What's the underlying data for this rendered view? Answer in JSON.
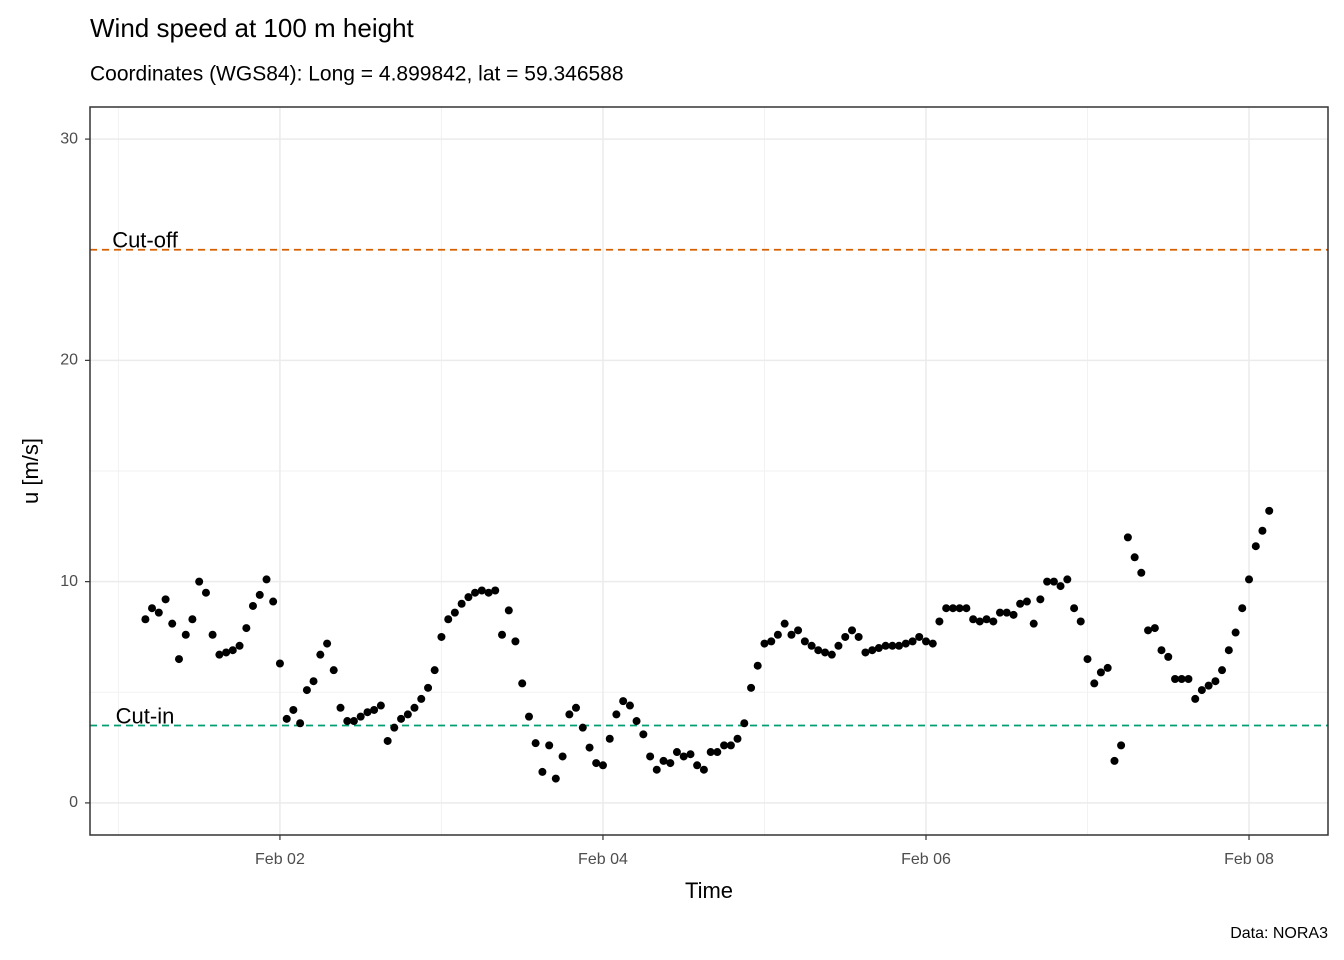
{
  "chart_data": {
    "type": "scatter",
    "title": "Wind speed at 100 m height",
    "subtitle": "Coordinates (WGS84): Long = 4.899842, lat = 59.346588",
    "x_label": "Time",
    "y_label": "u [m/s]",
    "caption": "Data: NORA3",
    "color": "#000000",
    "grid": true,
    "xlim": [
      0.824,
      8.489
    ],
    "ylim": [
      -1.45,
      31.45
    ],
    "xticks": [
      {
        "value": 2,
        "label": "Feb 02"
      },
      {
        "value": 4,
        "label": "Feb 04"
      },
      {
        "value": 6,
        "label": "Feb 06"
      },
      {
        "value": 8,
        "label": "Feb 08"
      }
    ],
    "xminor": [
      1,
      3,
      5,
      7
    ],
    "yticks": [
      0,
      10,
      20,
      30
    ],
    "yminor": [
      5,
      15,
      25
    ],
    "hlines": [
      {
        "label": "Cut-off",
        "value": 25,
        "color": "#d55e00"
      },
      {
        "label": "Cut-in",
        "value": 3.5,
        "color": "#009e73"
      }
    ],
    "x": [
      1.167,
      1.208,
      1.25,
      1.292,
      1.333,
      1.375,
      1.417,
      1.458,
      1.5,
      1.542,
      1.583,
      1.625,
      1.667,
      1.708,
      1.75,
      1.792,
      1.833,
      1.875,
      1.917,
      1.958,
      2,
      2.042,
      2.083,
      2.125,
      2.167,
      2.208,
      2.25,
      2.292,
      2.333,
      2.375,
      2.417,
      2.458,
      2.5,
      2.542,
      2.583,
      2.625,
      2.667,
      2.708,
      2.75,
      2.792,
      2.833,
      2.875,
      2.917,
      2.958,
      3,
      3.042,
      3.083,
      3.125,
      3.167,
      3.208,
      3.25,
      3.292,
      3.333,
      3.375,
      3.417,
      3.458,
      3.5,
      3.542,
      3.583,
      3.625,
      3.667,
      3.708,
      3.75,
      3.792,
      3.833,
      3.875,
      3.917,
      3.958,
      4,
      4.042,
      4.083,
      4.125,
      4.167,
      4.208,
      4.25,
      4.292,
      4.333,
      4.375,
      4.417,
      4.458,
      4.5,
      4.542,
      4.583,
      4.625,
      4.667,
      4.708,
      4.75,
      4.792,
      4.833,
      4.875,
      4.917,
      4.958,
      5,
      5.042,
      5.083,
      5.125,
      5.167,
      5.208,
      5.25,
      5.292,
      5.333,
      5.375,
      5.417,
      5.458,
      5.5,
      5.542,
      5.583,
      5.625,
      5.667,
      5.708,
      5.75,
      5.792,
      5.833,
      5.875,
      5.917,
      5.958,
      6,
      6.042,
      6.083,
      6.125,
      6.167,
      6.208,
      6.25,
      6.292,
      6.333,
      6.375,
      6.417,
      6.458,
      6.5,
      6.542,
      6.583,
      6.625,
      6.667,
      6.708,
      6.75,
      6.792,
      6.833,
      6.875,
      6.917,
      6.958,
      7,
      7.042,
      7.083,
      7.125,
      7.167,
      7.208,
      7.25,
      7.292,
      7.333,
      7.375,
      7.417,
      7.458,
      7.5,
      7.542,
      7.583,
      7.625,
      7.667,
      7.708,
      7.75,
      7.792,
      7.833,
      7.875,
      7.917,
      7.958,
      8,
      8.042,
      8.083,
      8.125
    ],
    "values": [
      8.3,
      8.8,
      8.6,
      9.2,
      8.1,
      6.5,
      7.6,
      8.3,
      10.0,
      9.5,
      7.6,
      6.7,
      6.8,
      6.9,
      7.1,
      7.9,
      8.9,
      9.4,
      10.1,
      9.1,
      6.3,
      3.8,
      4.2,
      3.6,
      5.1,
      5.5,
      6.7,
      7.2,
      6.0,
      4.3,
      3.7,
      3.7,
      3.9,
      4.1,
      4.2,
      4.4,
      2.8,
      3.4,
      3.8,
      4.0,
      4.3,
      4.7,
      5.2,
      6.0,
      7.5,
      8.3,
      8.6,
      9.0,
      9.3,
      9.5,
      9.6,
      9.5,
      9.6,
      7.6,
      8.7,
      7.3,
      5.4,
      3.9,
      2.7,
      1.4,
      2.6,
      1.1,
      2.1,
      4.0,
      4.3,
      3.4,
      2.5,
      1.8,
      1.7,
      2.9,
      4.0,
      4.6,
      4.4,
      3.7,
      3.1,
      2.1,
      1.5,
      1.9,
      1.8,
      2.3,
      2.1,
      2.2,
      1.7,
      1.5,
      2.3,
      2.3,
      2.6,
      2.6,
      2.9,
      3.6,
      5.2,
      6.2,
      7.2,
      7.3,
      7.6,
      8.1,
      7.6,
      7.8,
      7.3,
      7.1,
      6.9,
      6.8,
      6.7,
      7.1,
      7.5,
      7.8,
      7.5,
      6.8,
      6.9,
      7.0,
      7.1,
      7.1,
      7.1,
      7.2,
      7.3,
      7.5,
      7.3,
      7.2,
      8.2,
      8.8,
      8.8,
      8.8,
      8.8,
      8.3,
      8.2,
      8.3,
      8.2,
      8.6,
      8.6,
      8.5,
      9.0,
      9.1,
      8.1,
      9.2,
      10.0,
      10.0,
      9.8,
      10.1,
      8.8,
      8.2,
      6.5,
      5.4,
      5.9,
      6.1,
      1.9,
      2.6,
      12.0,
      11.1,
      10.4,
      7.8,
      7.9,
      6.9,
      6.6,
      5.6,
      5.6,
      5.6,
      4.7,
      5.1,
      5.3,
      5.5,
      6.0,
      6.9,
      7.7,
      8.8,
      10.1,
      11.6,
      12.3,
      13.2
    ]
  }
}
